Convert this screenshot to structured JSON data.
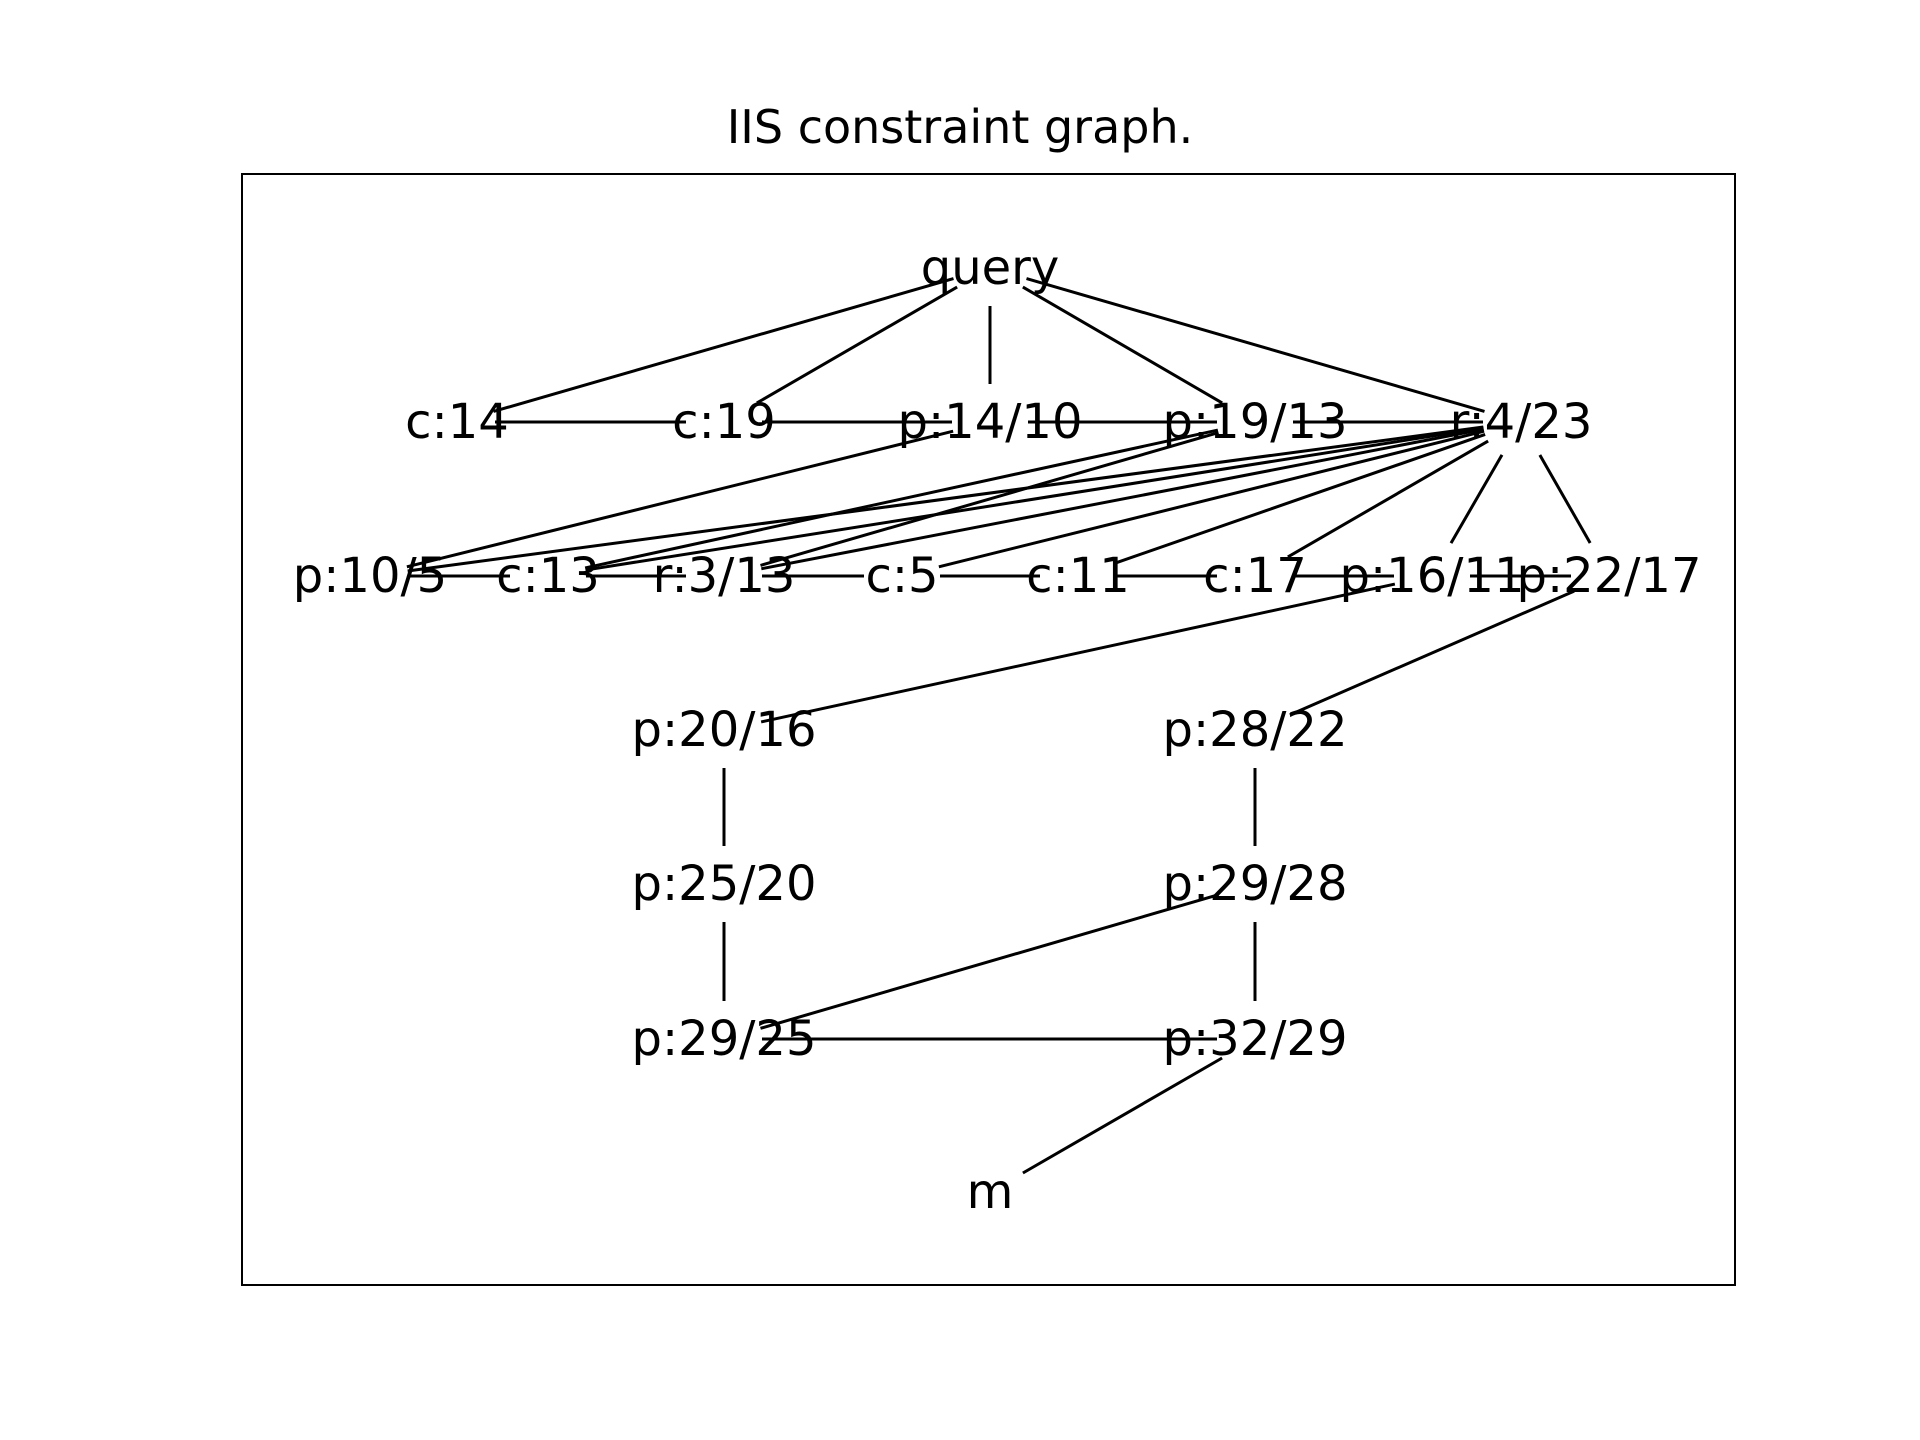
{
  "title": "IIS constraint graph.",
  "nodes": [
    {
      "id": "query",
      "label": "query"
    },
    {
      "id": "c14",
      "label": "c:14"
    },
    {
      "id": "c19",
      "label": "c:19"
    },
    {
      "id": "p14_10",
      "label": "p:14/10"
    },
    {
      "id": "p19_13",
      "label": "p:19/13"
    },
    {
      "id": "r4_23",
      "label": "r:4/23"
    },
    {
      "id": "p10_5",
      "label": "p:10/5"
    },
    {
      "id": "c13",
      "label": "c:13"
    },
    {
      "id": "r3_13",
      "label": "r:3/13"
    },
    {
      "id": "c5",
      "label": "c:5"
    },
    {
      "id": "c11",
      "label": "c:11"
    },
    {
      "id": "c17",
      "label": "c:17"
    },
    {
      "id": "p16_11",
      "label": "p:16/11"
    },
    {
      "id": "p22_17",
      "label": "p:22/17"
    },
    {
      "id": "p20_16",
      "label": "p:20/16"
    },
    {
      "id": "p28_22",
      "label": "p:28/22"
    },
    {
      "id": "p25_20",
      "label": "p:25/20"
    },
    {
      "id": "p29_28",
      "label": "p:29/28"
    },
    {
      "id": "p29_25",
      "label": "p:29/25"
    },
    {
      "id": "p32_29",
      "label": "p:32/29"
    },
    {
      "id": "m",
      "label": "m"
    }
  ],
  "edges": [
    [
      "query",
      "c14"
    ],
    [
      "query",
      "c19"
    ],
    [
      "query",
      "p14_10"
    ],
    [
      "query",
      "p19_13"
    ],
    [
      "query",
      "r4_23"
    ],
    [
      "c14",
      "c19"
    ],
    [
      "c19",
      "p14_10"
    ],
    [
      "p14_10",
      "p19_13"
    ],
    [
      "p19_13",
      "r4_23"
    ],
    [
      "p14_10",
      "p10_5"
    ],
    [
      "p19_13",
      "c13"
    ],
    [
      "p19_13",
      "r3_13"
    ],
    [
      "r4_23",
      "p10_5"
    ],
    [
      "r4_23",
      "c13"
    ],
    [
      "r4_23",
      "r3_13"
    ],
    [
      "r4_23",
      "c5"
    ],
    [
      "r4_23",
      "c11"
    ],
    [
      "r4_23",
      "c17"
    ],
    [
      "r4_23",
      "p16_11"
    ],
    [
      "r4_23",
      "p22_17"
    ],
    [
      "p10_5",
      "c13"
    ],
    [
      "c13",
      "r3_13"
    ],
    [
      "r3_13",
      "c5"
    ],
    [
      "c5",
      "c11"
    ],
    [
      "c11",
      "c17"
    ],
    [
      "c17",
      "p16_11"
    ],
    [
      "p16_11",
      "p22_17"
    ],
    [
      "p16_11",
      "p20_16"
    ],
    [
      "p22_17",
      "p28_22"
    ],
    [
      "p20_16",
      "p25_20"
    ],
    [
      "p28_22",
      "p29_28"
    ],
    [
      "p25_20",
      "p29_25"
    ],
    [
      "p29_28",
      "p32_29"
    ],
    [
      "p29_28",
      "p29_25"
    ],
    [
      "p29_25",
      "p32_29"
    ],
    [
      "p32_29",
      "m"
    ]
  ]
}
